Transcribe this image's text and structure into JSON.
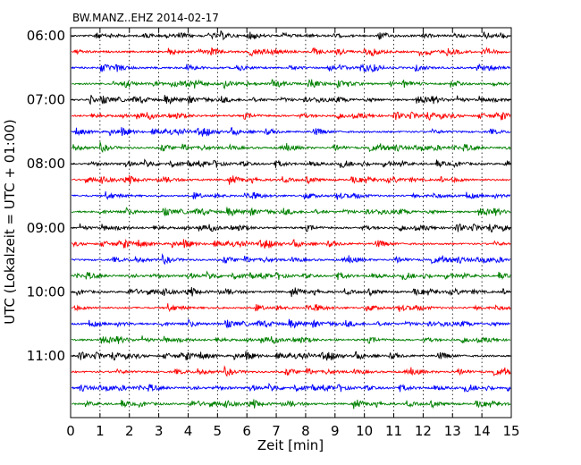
{
  "chart_data": {
    "type": "line",
    "title": "BW.MANZ..EHZ 2014-02-17",
    "xlabel": "Zeit  [min]",
    "ylabel": "UTC (Lokalzeit = UTC + 01:00)",
    "xlim": [
      0,
      15
    ],
    "xticks": [
      "0",
      "1",
      "2",
      "3",
      "4",
      "5",
      "6",
      "7",
      "8",
      "9",
      "10",
      "11",
      "12",
      "13",
      "14",
      "15"
    ],
    "yticks": [
      {
        "label": "06:00",
        "trace": 0
      },
      {
        "label": "07:00",
        "trace": 4
      },
      {
        "label": "08:00",
        "trace": 8
      },
      {
        "label": "09:00",
        "trace": 12
      },
      {
        "label": "10:00",
        "trace": 16
      },
      {
        "label": "11:00",
        "trace": 20
      }
    ],
    "grid": "vertical dotted",
    "trace_interval_min": 15,
    "series": [
      {
        "start": "06:00",
        "color": "#000000"
      },
      {
        "start": "06:15",
        "color": "#ff0000"
      },
      {
        "start": "06:30",
        "color": "#0000ff"
      },
      {
        "start": "06:45",
        "color": "#008000"
      },
      {
        "start": "07:00",
        "color": "#000000"
      },
      {
        "start": "07:15",
        "color": "#ff0000"
      },
      {
        "start": "07:30",
        "color": "#0000ff"
      },
      {
        "start": "07:45",
        "color": "#008000"
      },
      {
        "start": "08:00",
        "color": "#000000"
      },
      {
        "start": "08:15",
        "color": "#ff0000"
      },
      {
        "start": "08:30",
        "color": "#0000ff"
      },
      {
        "start": "08:45",
        "color": "#008000"
      },
      {
        "start": "09:00",
        "color": "#000000"
      },
      {
        "start": "09:15",
        "color": "#ff0000"
      },
      {
        "start": "09:30",
        "color": "#0000ff"
      },
      {
        "start": "09:45",
        "color": "#008000"
      },
      {
        "start": "10:00",
        "color": "#000000"
      },
      {
        "start": "10:15",
        "color": "#ff0000"
      },
      {
        "start": "10:30",
        "color": "#0000ff"
      },
      {
        "start": "10:45",
        "color": "#008000"
      },
      {
        "start": "11:00",
        "color": "#000000"
      },
      {
        "start": "11:15",
        "color": "#ff0000"
      },
      {
        "start": "11:30",
        "color": "#0000ff"
      },
      {
        "start": "11:45",
        "color": "#008000"
      }
    ]
  }
}
